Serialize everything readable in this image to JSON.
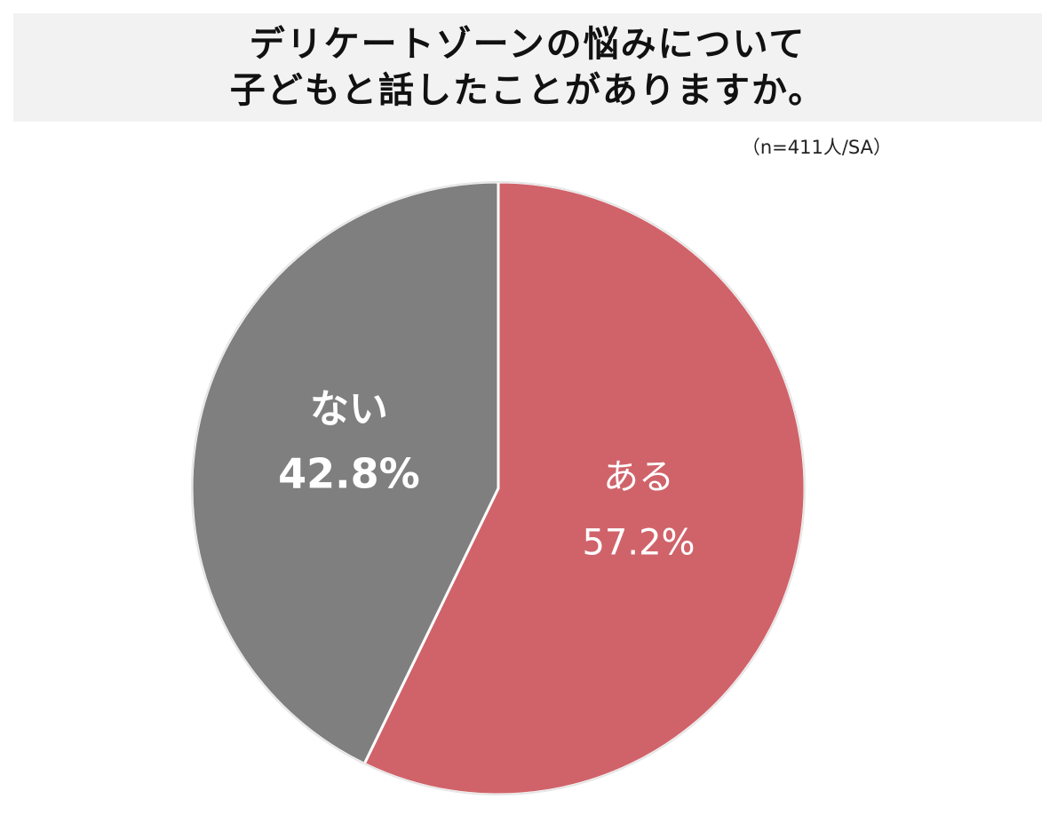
{
  "title": {
    "line1": "デリケートゾーンの悩みについて",
    "line2": "子どもと話したことがありますか。"
  },
  "note": "（n=411人/SA）",
  "colors": {
    "yes": "#d0636a",
    "no": "#7f7f7f",
    "title_bg": "#f2f2f2"
  },
  "chart_data": {
    "type": "pie",
    "slices": [
      {
        "label": "ある",
        "value": 57.2,
        "value_label": "57.2%",
        "color": "#d0636a"
      },
      {
        "label": "ない",
        "value": 42.8,
        "value_label": "42.8%",
        "color": "#7f7f7f"
      }
    ]
  }
}
